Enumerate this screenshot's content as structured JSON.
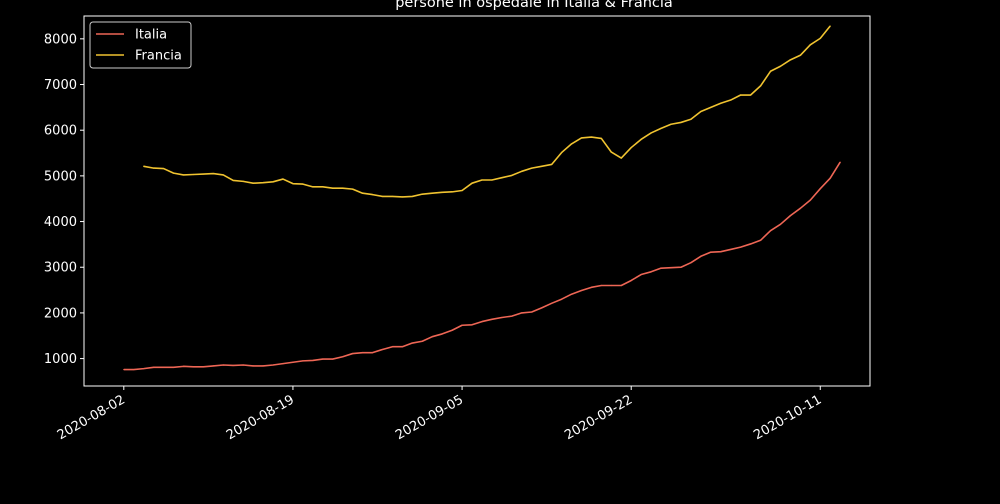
{
  "chart_data": {
    "type": "line",
    "title": "persone in ospedale in Italia & Francia",
    "xlabel": "",
    "ylabel": "",
    "x_start": "2020-08-02",
    "x_tick_labels": [
      "2020-08-02",
      "2020-08-19",
      "2020-09-05",
      "2020-09-22",
      "2020-10-11"
    ],
    "x_tick_dates": [
      "2020-08-02",
      "2020-08-19",
      "2020-09-05",
      "2020-09-22",
      "2020-10-11"
    ],
    "xlim": [
      "2020-07-29",
      "2020-10-16"
    ],
    "y_ticks": [
      1000,
      2000,
      3000,
      4000,
      5000,
      6000,
      7000,
      8000
    ],
    "ylim": [
      400,
      8500
    ],
    "legend_position": "top-left",
    "grid": false,
    "background": "#000000",
    "series": [
      {
        "name": "Italia",
        "color": "#ee6655",
        "start_date": "2020-08-02",
        "values": [
          760,
          760,
          780,
          810,
          810,
          810,
          830,
          820,
          820,
          840,
          860,
          850,
          860,
          840,
          840,
          860,
          890,
          920,
          950,
          960,
          990,
          990,
          1040,
          1110,
          1130,
          1130,
          1200,
          1260,
          1260,
          1340,
          1380,
          1480,
          1540,
          1620,
          1730,
          1740,
          1810,
          1860,
          1900,
          1930,
          2000,
          2020,
          2110,
          2210,
          2300,
          2410,
          2490,
          2560,
          2600,
          2600,
          2600,
          2710,
          2840,
          2900,
          2980,
          2990,
          3000,
          3100,
          3240,
          3330,
          3340,
          3390,
          3440,
          3510,
          3590,
          3800,
          3940,
          4130,
          4290,
          4470,
          4720,
          4950,
          5300
        ]
      },
      {
        "name": "Francia",
        "color": "#f0c330",
        "start_date": "2020-08-04",
        "values": [
          5210,
          5170,
          5160,
          5060,
          5020,
          5030,
          5040,
          5050,
          5020,
          4900,
          4880,
          4840,
          4850,
          4870,
          4930,
          4830,
          4820,
          4760,
          4760,
          4730,
          4730,
          4710,
          4620,
          4590,
          4550,
          4550,
          4540,
          4550,
          4600,
          4620,
          4640,
          4650,
          4680,
          4840,
          4910,
          4910,
          4960,
          5010,
          5100,
          5170,
          5210,
          5250,
          5510,
          5700,
          5830,
          5850,
          5820,
          5520,
          5390,
          5620,
          5800,
          5940,
          6040,
          6130,
          6170,
          6240,
          6410,
          6500,
          6590,
          6660,
          6770,
          6770,
          6970,
          7290,
          7400,
          7540,
          7640,
          7870,
          8010,
          8280
        ]
      }
    ]
  }
}
